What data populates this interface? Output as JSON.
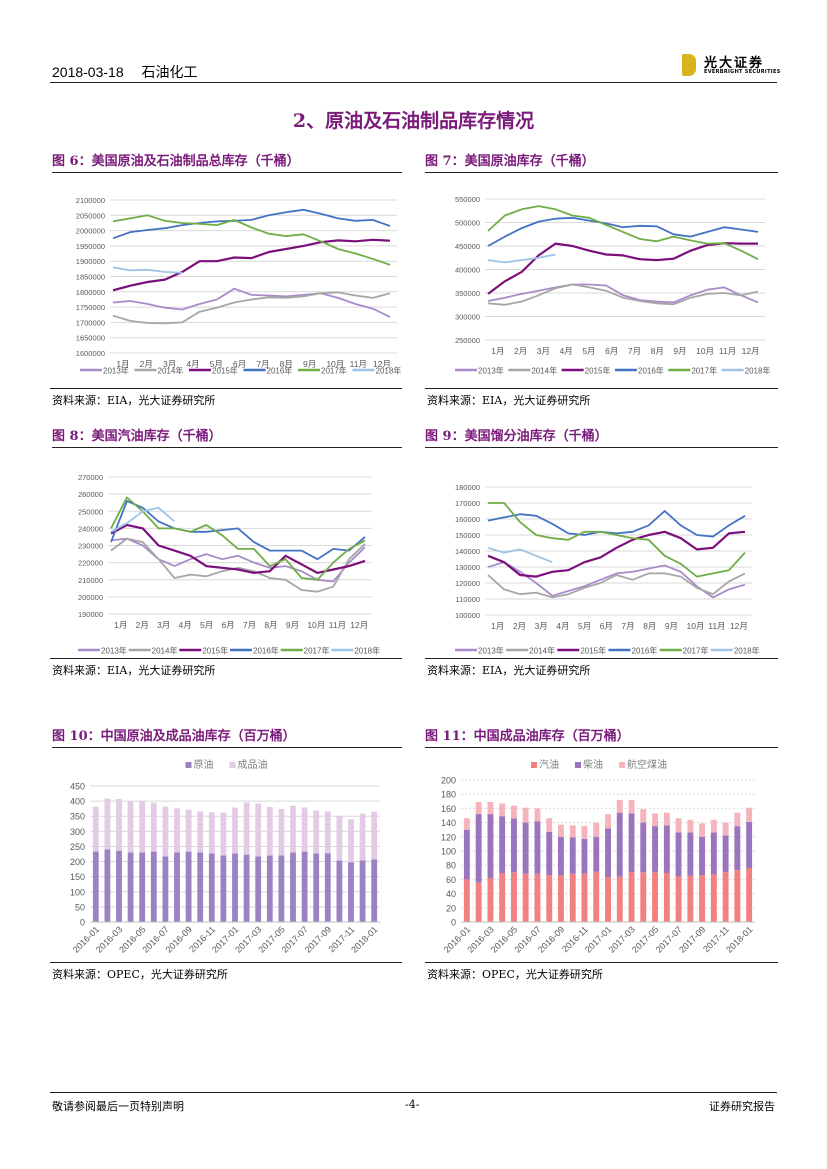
{
  "header": {
    "date": "2018-03-18",
    "sector": "石油化工",
    "logo_cn": "光大证券",
    "logo_en": "EVERBRIGHT SECURITIES",
    "logo_color": "#d9b21c"
  },
  "section_title": "2、原油及石油制品库存情况",
  "title_color": "#7a1a7a",
  "sources": {
    "eia": "资料来源：EIA，光大证券研究所",
    "opec": "资料来源：OPEC，光大证券研究所"
  },
  "footer": {
    "left": "敬请参阅最后一页特别声明",
    "center": "-4-",
    "right": "证券研究报告"
  },
  "series_colors": {
    "2013年": "#a98bcb",
    "2014年": "#a6a6a6",
    "2015年": "#7b0f7b",
    "2016年": "#4472c4",
    "2017年": "#70ad47",
    "2018年": "#9dc3e6"
  },
  "chart_data": [
    {
      "id": "fig6",
      "type": "line",
      "title": "图 6：美国原油及石油制品总库存（千桶）",
      "categories": [
        "1月",
        "2月",
        "3月",
        "4月",
        "5月",
        "6月",
        "7月",
        "8月",
        "9月",
        "10月",
        "11月",
        "12月"
      ],
      "ylim": [
        1600000,
        2100000
      ],
      "yticks": [
        1600000,
        1650000,
        1700000,
        1750000,
        1800000,
        1850000,
        1900000,
        1950000,
        2000000,
        2050000,
        2100000
      ],
      "series": [
        {
          "name": "2013年",
          "values": [
            1765000,
            1770000,
            1760000,
            1748000,
            1742000,
            1760000,
            1775000,
            1810000,
            1790000,
            1788000,
            1785000,
            1790000,
            1795000,
            1780000,
            1760000,
            1745000,
            1718000
          ]
        },
        {
          "name": "2014年",
          "values": [
            1722000,
            1705000,
            1698000,
            1697000,
            1700000,
            1735000,
            1748000,
            1765000,
            1775000,
            1782000,
            1780000,
            1785000,
            1795000,
            1798000,
            1788000,
            1780000,
            1795000
          ]
        },
        {
          "name": "2015年",
          "values": [
            1805000,
            1820000,
            1832000,
            1840000,
            1865000,
            1900000,
            1900000,
            1912000,
            1910000,
            1930000,
            1940000,
            1950000,
            1962000,
            1968000,
            1965000,
            1970000,
            1967000
          ]
        },
        {
          "name": "2016年",
          "values": [
            1975000,
            1995000,
            2002000,
            2008000,
            2018000,
            2025000,
            2030000,
            2032000,
            2035000,
            2050000,
            2060000,
            2068000,
            2055000,
            2040000,
            2032000,
            2035000,
            2015000
          ]
        },
        {
          "name": "2017年",
          "values": [
            2030000,
            2040000,
            2050000,
            2032000,
            2025000,
            2022000,
            2018000,
            2035000,
            2010000,
            1990000,
            1982000,
            1988000,
            1965000,
            1940000,
            1925000,
            1908000,
            1888000
          ]
        },
        {
          "name": "2018年",
          "values": [
            1880000,
            1870000,
            1872000,
            1865000,
            1862000
          ]
        }
      ]
    },
    {
      "id": "fig7",
      "type": "line",
      "title": "图 7：美国原油库存（千桶）",
      "categories": [
        "1月",
        "2月",
        "3月",
        "4月",
        "5月",
        "6月",
        "7月",
        "8月",
        "9月",
        "10月",
        "11月",
        "12月"
      ],
      "ylim": [
        250000,
        550000
      ],
      "yticks": [
        250000,
        300000,
        350000,
        400000,
        450000,
        500000,
        550000
      ],
      "series": [
        {
          "name": "2013年",
          "values": [
            333000,
            340000,
            348000,
            355000,
            362000,
            368000,
            368000,
            366000,
            345000,
            335000,
            332000,
            330000,
            345000,
            357000,
            362000,
            345000,
            330000
          ]
        },
        {
          "name": "2014年",
          "values": [
            328000,
            325000,
            332000,
            345000,
            360000,
            368000,
            362000,
            355000,
            340000,
            333000,
            328000,
            326000,
            340000,
            348000,
            350000,
            345000,
            353000
          ]
        },
        {
          "name": "2015年",
          "values": [
            348000,
            375000,
            395000,
            430000,
            455000,
            450000,
            440000,
            432000,
            430000,
            422000,
            420000,
            423000,
            440000,
            452000,
            456000,
            455000,
            455000
          ]
        },
        {
          "name": "2016年",
          "values": [
            450000,
            470000,
            488000,
            502000,
            508000,
            510000,
            504000,
            498000,
            490000,
            493000,
            492000,
            475000,
            470000,
            480000,
            490000,
            485000,
            480000
          ]
        },
        {
          "name": "2017年",
          "values": [
            482000,
            515000,
            528000,
            535000,
            528000,
            515000,
            510000,
            495000,
            480000,
            465000,
            460000,
            470000,
            462000,
            455000,
            456000,
            440000,
            422000
          ]
        },
        {
          "name": "2018年",
          "values": [
            420000,
            415000,
            420000,
            425000,
            432000
          ]
        }
      ]
    },
    {
      "id": "fig8",
      "type": "line",
      "title": "图 8：美国汽油库存（千桶）",
      "categories": [
        "1月",
        "2月",
        "3月",
        "4月",
        "5月",
        "6月",
        "7月",
        "8月",
        "9月",
        "10月",
        "11月",
        "12月"
      ],
      "ylim": [
        190000,
        270000
      ],
      "yticks": [
        190000,
        200000,
        210000,
        220000,
        230000,
        240000,
        250000,
        260000,
        270000
      ],
      "series": [
        {
          "name": "2013年",
          "values": [
            233000,
            234000,
            230000,
            222000,
            218000,
            222000,
            225000,
            222000,
            224000,
            220000,
            217000,
            218000,
            215000,
            210000,
            209000,
            220000,
            229000
          ]
        },
        {
          "name": "2014年",
          "values": [
            227000,
            234000,
            232000,
            222000,
            211000,
            213000,
            212000,
            215000,
            217000,
            215000,
            211000,
            210000,
            204000,
            203000,
            206000,
            222000,
            231000
          ]
        },
        {
          "name": "2015年",
          "values": [
            237000,
            242000,
            240000,
            230000,
            227000,
            224000,
            218000,
            217000,
            216000,
            214000,
            215000,
            224000,
            219000,
            214000,
            216000,
            218000,
            221000
          ]
        },
        {
          "name": "2016年",
          "values": [
            232000,
            256000,
            252000,
            244000,
            240000,
            238000,
            238000,
            239000,
            240000,
            232000,
            227000,
            227000,
            227000,
            222000,
            228000,
            227000,
            235000
          ]
        },
        {
          "name": "2017年",
          "values": [
            240000,
            258000,
            250000,
            240000,
            240000,
            238000,
            242000,
            236000,
            228000,
            228000,
            218000,
            222000,
            211000,
            210000,
            220000,
            228000,
            233000
          ]
        },
        {
          "name": "2018年",
          "values": [
            238000,
            243000,
            250000,
            252000,
            244000
          ]
        }
      ]
    },
    {
      "id": "fig9",
      "type": "line",
      "title": "图 9：美国馏分油库存（千桶）",
      "categories": [
        "1月",
        "2月",
        "3月",
        "4月",
        "5月",
        "6月",
        "7月",
        "8月",
        "9月",
        "10月",
        "11月",
        "12月"
      ],
      "ylim": [
        100000,
        180000
      ],
      "yticks": [
        100000,
        110000,
        120000,
        130000,
        140000,
        150000,
        160000,
        170000,
        180000
      ],
      "series": [
        {
          "name": "2013年",
          "values": [
            130000,
            133000,
            127000,
            120000,
            112000,
            115000,
            118000,
            122000,
            126000,
            127000,
            129000,
            131000,
            127000,
            118000,
            111000,
            116000,
            119000
          ]
        },
        {
          "name": "2014年",
          "values": [
            125000,
            116000,
            113000,
            114000,
            111000,
            113000,
            117000,
            120000,
            125000,
            122000,
            126000,
            126000,
            124000,
            117000,
            113000,
            121000,
            126000
          ]
        },
        {
          "name": "2015年",
          "values": [
            137000,
            133000,
            125000,
            124000,
            127000,
            128000,
            133000,
            136000,
            142000,
            147000,
            150000,
            152000,
            148000,
            141000,
            142000,
            151000,
            152000
          ]
        },
        {
          "name": "2016年",
          "values": [
            159000,
            161000,
            163000,
            162000,
            157000,
            151000,
            150000,
            152000,
            151000,
            152000,
            156000,
            165000,
            156000,
            150000,
            149000,
            156000,
            162000
          ]
        },
        {
          "name": "2017年",
          "values": [
            170000,
            170000,
            158000,
            150000,
            148000,
            147000,
            152000,
            152000,
            150000,
            148000,
            147000,
            137000,
            132000,
            124000,
            126000,
            128000,
            139000
          ]
        },
        {
          "name": "2018年",
          "values": [
            142000,
            139000,
            141000,
            137000,
            133000
          ]
        }
      ]
    },
    {
      "id": "fig10",
      "type": "bar",
      "stacked": true,
      "title": "图 10：中国原油及成品油库存（百万桶）",
      "categories": [
        "2016-01",
        "2016-02",
        "2016-03",
        "2016-04",
        "2016-05",
        "2016-06",
        "2016-07",
        "2016-08",
        "2016-09",
        "2016-10",
        "2016-11",
        "2016-12",
        "2017-01",
        "2017-02",
        "2017-03",
        "2017-04",
        "2017-05",
        "2017-06",
        "2017-07",
        "2017-08",
        "2017-09",
        "2017-10",
        "2017-11",
        "2017-12",
        "2018-01"
      ],
      "tick_labels": [
        "2016-01",
        "2016-03",
        "2016-05",
        "2016-07",
        "2016-09",
        "2016-11",
        "2017-01",
        "2017-03",
        "2017-05",
        "2017-07",
        "2017-09",
        "2017-11",
        "2018-01"
      ],
      "ylim": [
        0,
        450
      ],
      "yticks": [
        0,
        50,
        100,
        150,
        200,
        250,
        300,
        350,
        400,
        450
      ],
      "legend": "top",
      "series": [
        {
          "name": "原油",
          "color": "#9b82c3",
          "values": [
            233,
            240,
            236,
            230,
            230,
            233,
            217,
            230,
            233,
            230,
            227,
            220,
            227,
            223,
            217,
            220,
            220,
            230,
            233,
            227,
            227,
            203,
            198,
            204,
            207
          ]
        },
        {
          "name": "成品油",
          "color": "#e3cbe6",
          "values": [
            149,
            168,
            171,
            170,
            170,
            162,
            165,
            146,
            139,
            136,
            136,
            142,
            152,
            172,
            175,
            161,
            154,
            155,
            146,
            142,
            139,
            148,
            142,
            155,
            158
          ]
        }
      ]
    },
    {
      "id": "fig11",
      "type": "bar",
      "stacked": true,
      "title": "图 11：中国成品油库存（百万桶）",
      "categories": [
        "2016-01",
        "2016-02",
        "2016-03",
        "2016-04",
        "2016-05",
        "2016-06",
        "2016-07",
        "2016-08",
        "2016-09",
        "2016-10",
        "2016-11",
        "2016-12",
        "2017-01",
        "2017-02",
        "2017-03",
        "2017-04",
        "2017-05",
        "2017-06",
        "2017-07",
        "2017-08",
        "2017-09",
        "2017-10",
        "2017-11",
        "2017-12",
        "2018-01"
      ],
      "tick_labels": [
        "2016-01",
        "2016-03",
        "2016-05",
        "2016-07",
        "2016-09",
        "2016-11",
        "2017-01",
        "2017-03",
        "2017-05",
        "2017-07",
        "2017-09",
        "2017-11",
        "2018-01"
      ],
      "ylim": [
        0,
        200
      ],
      "yticks": [
        0,
        20,
        40,
        60,
        80,
        100,
        120,
        140,
        160,
        180,
        200
      ],
      "legend": "top",
      "series": [
        {
          "name": "汽油",
          "color": "#f28080",
          "values": [
            60,
            56,
            62,
            69,
            70,
            68,
            68,
            66,
            66,
            68,
            68,
            71,
            63,
            64,
            70,
            70,
            70,
            69,
            64,
            65,
            66,
            67,
            70,
            73,
            76
          ]
        },
        {
          "name": "柴油",
          "color": "#9b74be",
          "values": [
            70,
            96,
            90,
            80,
            76,
            72,
            74,
            61,
            54,
            51,
            49,
            49,
            69,
            90,
            83,
            70,
            65,
            67,
            62,
            61,
            54,
            59,
            52,
            62,
            65
          ]
        },
        {
          "name": "航空煤油",
          "color": "#f5b4bc",
          "values": [
            16,
            17,
            17,
            18,
            18,
            21,
            18,
            19,
            17,
            17,
            18,
            20,
            20,
            18,
            19,
            19,
            18,
            18,
            20,
            18,
            19,
            18,
            18,
            19,
            20
          ]
        }
      ]
    }
  ]
}
